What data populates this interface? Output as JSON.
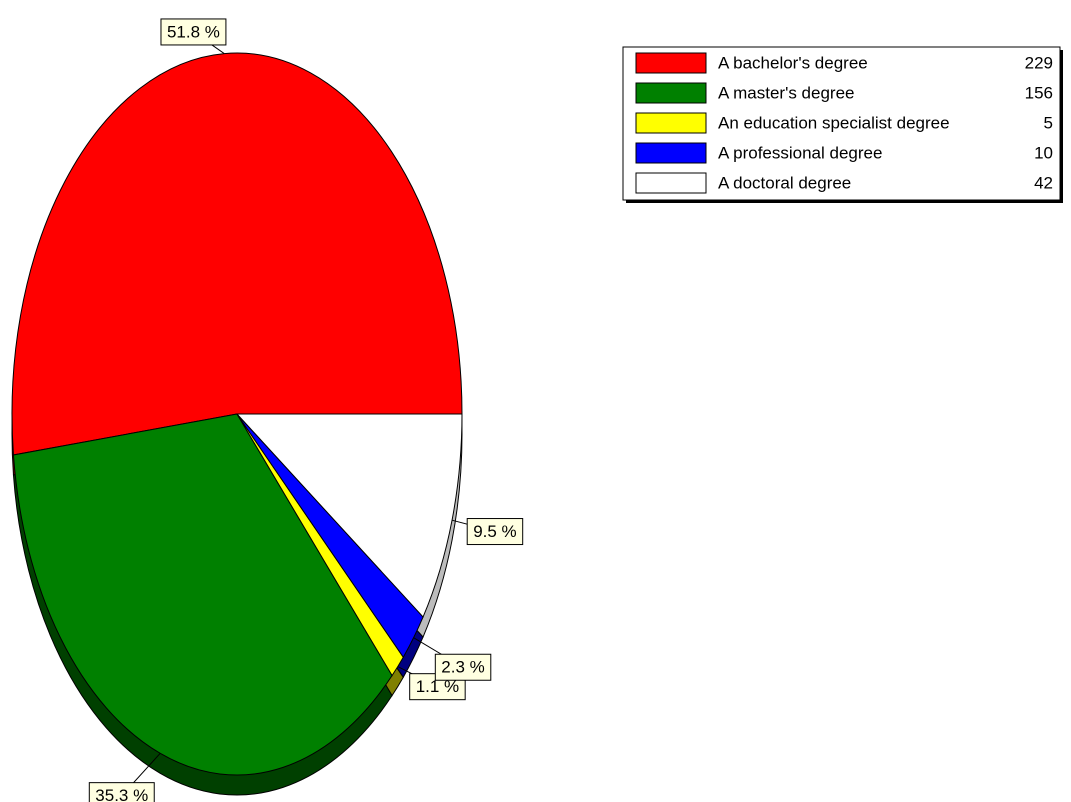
{
  "chart_data": {
    "type": "pie",
    "categories": [
      "A bachelor's degree",
      "A master's degree",
      "An education specialist degree",
      "A professional degree",
      "A doctoral degree"
    ],
    "values": [
      229,
      156,
      5,
      10,
      42
    ],
    "value_labels": [
      "51.8 %",
      "35.3 %",
      "1.1 %",
      "2.3 %",
      "9.5 %"
    ],
    "colors": [
      "#ff0000",
      "#008000",
      "#ffff00",
      "#0000ff",
      "#ffffff"
    ],
    "legend": "top-right"
  }
}
